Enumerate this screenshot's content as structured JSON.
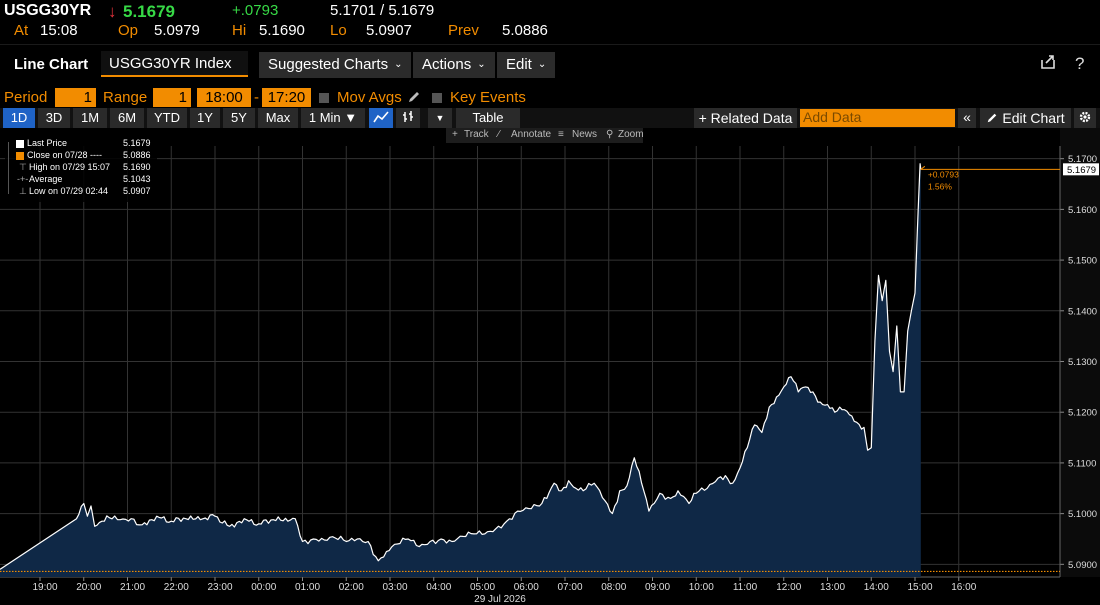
{
  "quote": {
    "ticker": "USGG30YR",
    "arrow": "↓",
    "last": "5.1679",
    "change": "+.0793",
    "bid_ask": "5.1701 / 5.1679",
    "at_label": "At",
    "at_time": "15:08",
    "open_label": "Op",
    "open": "5.0979",
    "high_label": "Hi",
    "high": "5.1690",
    "low_label": "Lo",
    "low": "5.0907",
    "prev_label": "Prev",
    "prev": "5.0886"
  },
  "toolbar": {
    "title": "Line Chart",
    "security": "USGG30YR Index",
    "suggested": "Suggested Charts",
    "actions": "Actions",
    "edit": "Edit",
    "export_icon": "export-icon",
    "help": "?"
  },
  "period_row": {
    "period_label": "Period",
    "period_value": "1",
    "range_label": "Range",
    "range_value": "1",
    "start_time": "18:00",
    "dash": "-",
    "end_time": "17:20",
    "mov_avgs": "Mov Avgs",
    "key_events": "Key Events"
  },
  "range_row": {
    "buttons": [
      "1D",
      "3D",
      "1M",
      "6M",
      "YTD",
      "1Y",
      "5Y",
      "Max"
    ],
    "interval": "1 Min ▼",
    "table": "Table",
    "related": "+ Related Data",
    "add_data_placeholder": "Add Data",
    "collapse": "«",
    "edit_chart": "Edit Chart"
  },
  "subtools": {
    "track": "Track",
    "annotate": "Annotate",
    "news": "News",
    "zoom": "Zoom"
  },
  "legend": {
    "rows": [
      {
        "label": "Last Price",
        "value": "5.1679"
      },
      {
        "label": "Close on 07/28 ----",
        "value": "5.0886"
      },
      {
        "label": "High on 07/29 15:07",
        "value": "5.1690"
      },
      {
        "label": "Average",
        "value": "5.1043"
      },
      {
        "label": "Low on 07/29 02:44",
        "value": "5.0907"
      }
    ]
  },
  "colors": {
    "accent": "#f28c00",
    "line": "#ffffff",
    "area": "#0f2846",
    "grid": "#333333",
    "positive": "#37d946",
    "negative": "#e5323c"
  },
  "chart_data": {
    "type": "area",
    "date_label": "29 Jul 2026",
    "x_labels": [
      "19:00",
      "20:00",
      "21:00",
      "22:00",
      "23:00",
      "00:00",
      "01:00",
      "02:00",
      "03:00",
      "04:00",
      "05:00",
      "06:00",
      "07:00",
      "08:00",
      "09:00",
      "10:00",
      "11:00",
      "12:00",
      "13:00",
      "14:00",
      "15:00",
      "16:00"
    ],
    "y_ticks": [
      "5.0900",
      "5.1000",
      "5.1100",
      "5.1200",
      "5.1300",
      "5.1400",
      "5.1500",
      "5.1600",
      "5.1700"
    ],
    "ylim": [
      5.0875,
      5.1725
    ],
    "prev_close": 5.0886,
    "last_price": "5.1679",
    "change_annotation": "+0.0793",
    "pct_annotation": "1.56%",
    "series": [
      {
        "x": [
          "18:00",
          "19:50",
          "20:00",
          "20:05",
          "20:10",
          "20:15",
          "20:25",
          "20:35",
          "20:50",
          "21:05",
          "21:20",
          "21:40",
          "22:00",
          "22:20",
          "22:40",
          "23:00",
          "23:20",
          "23:40",
          "00:00",
          "00:20",
          "00:40",
          "00:50",
          "01:00",
          "01:15",
          "01:30",
          "01:45",
          "02:00",
          "02:15",
          "02:30",
          "02:44",
          "02:55",
          "03:10",
          "03:25",
          "03:40",
          "03:55",
          "04:10",
          "04:25",
          "04:40",
          "04:55",
          "05:10",
          "05:25",
          "05:40",
          "05:55",
          "06:10",
          "06:25",
          "06:35",
          "06:45",
          "06:55",
          "07:05",
          "07:15",
          "07:25",
          "07:40",
          "07:55",
          "08:05",
          "08:15",
          "08:25",
          "08:35",
          "08:45",
          "08:55",
          "09:10",
          "09:25",
          "09:35",
          "09:50",
          "10:00",
          "10:15",
          "10:30",
          "10:40",
          "10:50",
          "11:00",
          "11:10",
          "11:20",
          "11:30",
          "11:40",
          "11:50",
          "12:00",
          "12:10",
          "12:20",
          "12:30",
          "12:40",
          "12:50",
          "13:00",
          "13:10",
          "13:20",
          "13:30",
          "13:40",
          "13:50",
          "13:55",
          "14:00",
          "14:05",
          "14:10",
          "14:15",
          "14:20",
          "14:25",
          "14:30",
          "14:35",
          "14:40",
          "14:45",
          "14:50",
          "14:55",
          "15:00",
          "15:03",
          "15:05",
          "15:07",
          "15:08"
        ],
        "y": [
          5.089,
          5.099,
          5.102,
          5.0995,
          5.1015,
          5.0975,
          5.0985,
          5.0992,
          5.0988,
          5.099,
          5.0978,
          5.0995,
          5.0985,
          5.099,
          5.0988,
          5.0995,
          5.0975,
          5.099,
          5.098,
          5.0988,
          5.0985,
          5.099,
          5.0945,
          5.095,
          5.0948,
          5.0952,
          5.0945,
          5.095,
          5.0945,
          5.0907,
          5.0925,
          5.094,
          5.095,
          5.0935,
          5.0945,
          5.095,
          5.0945,
          5.0955,
          5.096,
          5.096,
          5.097,
          5.0985,
          5.1005,
          5.101,
          5.1015,
          5.103,
          5.106,
          5.1045,
          5.1065,
          5.105,
          5.1045,
          5.106,
          5.1025,
          5.1,
          5.1045,
          5.1055,
          5.111,
          5.106,
          5.1005,
          5.104,
          5.103,
          5.1045,
          5.102,
          5.104,
          5.105,
          5.107,
          5.1075,
          5.106,
          5.109,
          5.113,
          5.1175,
          5.116,
          5.121,
          5.123,
          5.125,
          5.127,
          5.124,
          5.125,
          5.124,
          5.122,
          5.1215,
          5.12,
          5.1205,
          5.1195,
          5.118,
          5.117,
          5.1125,
          5.113,
          5.134,
          5.147,
          5.142,
          5.146,
          5.132,
          5.128,
          5.137,
          5.124,
          5.124,
          5.136,
          5.14,
          5.1435,
          5.155,
          5.162,
          5.169,
          5.1679
        ]
      }
    ]
  }
}
